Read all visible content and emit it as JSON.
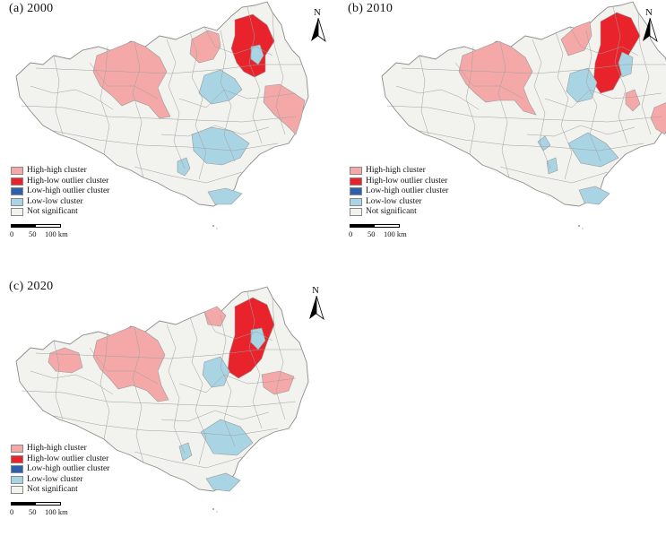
{
  "panels": [
    {
      "title": "(a) 2000",
      "year": 2000
    },
    {
      "title": "(b) 2010",
      "year": 2010
    },
    {
      "title": "(c) 2020",
      "year": 2020
    }
  ],
  "legend": [
    {
      "label": "High-high cluster",
      "color": "#f4a9a8"
    },
    {
      "label": "High-low outlier cluster",
      "color": "#e8232b"
    },
    {
      "label": "Low-high outlier cluster",
      "color": "#2f5faf"
    },
    {
      "label": "Low-low cluster",
      "color": "#a9d4e4"
    },
    {
      "label": "Not significant",
      "color": "#f2f2ee"
    }
  ],
  "scale_bar": {
    "labels": [
      "0",
      "50",
      "100 km"
    ]
  },
  "north_arrow": {
    "label": "N"
  }
}
